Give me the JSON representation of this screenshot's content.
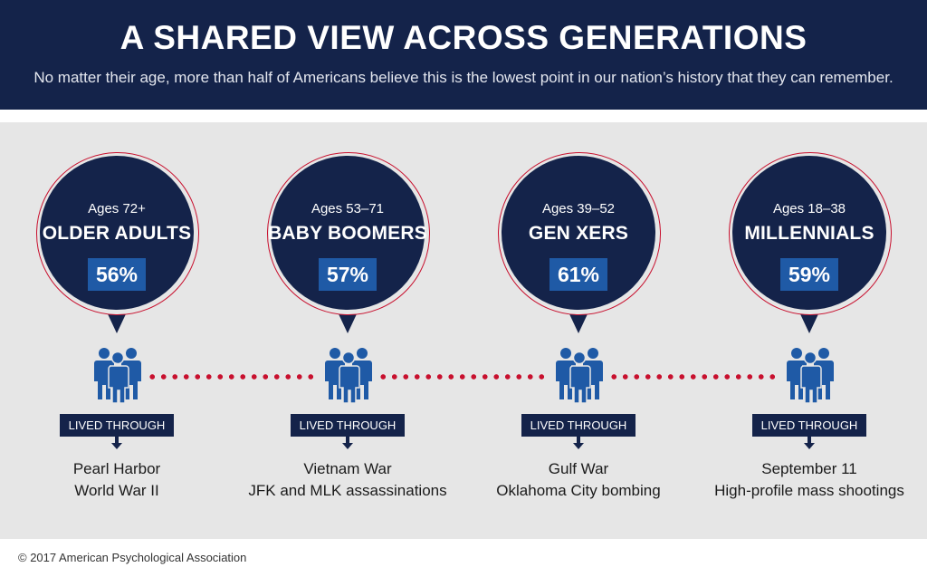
{
  "header": {
    "title": "A SHARED VIEW ACROSS GENERATIONS",
    "subtitle": "No matter their age, more than half of Americans believe this is the lowest point in our nation’s history that they can remember."
  },
  "colors": {
    "navy": "#14234a",
    "accent_blue": "#1f5aa6",
    "dot_red": "#c8102e",
    "panel_gray": "#e6e6e6"
  },
  "generations": [
    {
      "age": "Ages 72+",
      "name": "OLDER ADULTS",
      "percent": "56%",
      "lived_label": "LIVED THROUGH",
      "events": [
        "Pearl Harbor",
        "World War II"
      ],
      "icon": "people-group-icon"
    },
    {
      "age": "Ages 53–71",
      "name": "BABY BOOMERS",
      "percent": "57%",
      "lived_label": "LIVED THROUGH",
      "events": [
        "Vietnam War",
        "JFK and MLK assassinations"
      ],
      "icon": "people-group-icon"
    },
    {
      "age": "Ages 39–52",
      "name": "GEN XERS",
      "percent": "61%",
      "lived_label": "LIVED THROUGH",
      "events": [
        "Gulf War",
        "Oklahoma City bombing"
      ],
      "icon": "people-group-icon"
    },
    {
      "age": "Ages 18–38",
      "name": "MILLENNIALS",
      "percent": "59%",
      "lived_label": "LIVED THROUGH",
      "events": [
        "September 11",
        "High-profile mass shootings"
      ],
      "icon": "people-group-icon"
    }
  ],
  "footer": {
    "copyright": "© 2017 American Psychological Association"
  }
}
